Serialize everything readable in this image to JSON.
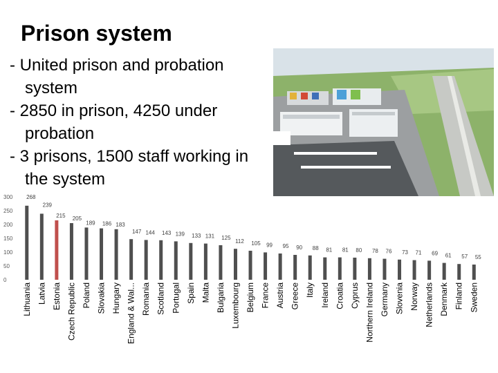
{
  "slide": {
    "title": "Prison system",
    "bullets": [
      "- United prison and probation system",
      "- 2850 in prison, 4250 under probation",
      "- 3 prisons, 1500 staff working in the system"
    ],
    "photo_icon": "prison-aerial-photo"
  },
  "colors": {
    "bar": "#4f4f4f",
    "highlight": "#c0504d",
    "axis_text": "#595959"
  },
  "chart_data": {
    "type": "bar",
    "title": "",
    "xlabel": "",
    "ylabel": "",
    "ylim": [
      0,
      300
    ],
    "yticks": [
      0,
      50,
      100,
      150,
      200,
      250,
      300
    ],
    "highlight_category": "Estonia",
    "categories": [
      "Lithuania",
      "Latvia",
      "Estonia",
      "Czech Republic",
      "Poland",
      "Slovakia",
      "Hungary",
      "England & Wal...",
      "Romania",
      "Scotland",
      "Portugal",
      "Spain",
      "Malta",
      "Bulgaria",
      "Luxembourg",
      "Belgium",
      "France",
      "Austria",
      "Greece",
      "Italy",
      "Ireland",
      "Croatia",
      "Cyprus",
      "Northern Ireland",
      "Germany",
      "Slovenia",
      "Norway",
      "Netherlands",
      "Denmark",
      "Finland",
      "Sweden"
    ],
    "values": [
      268,
      239,
      215,
      205,
      189,
      186,
      183,
      147,
      144,
      143,
      139,
      133,
      131,
      125,
      112,
      105,
      99,
      95,
      90,
      88,
      81,
      81,
      80,
      78,
      76,
      73,
      71,
      69,
      61,
      57,
      55
    ]
  }
}
